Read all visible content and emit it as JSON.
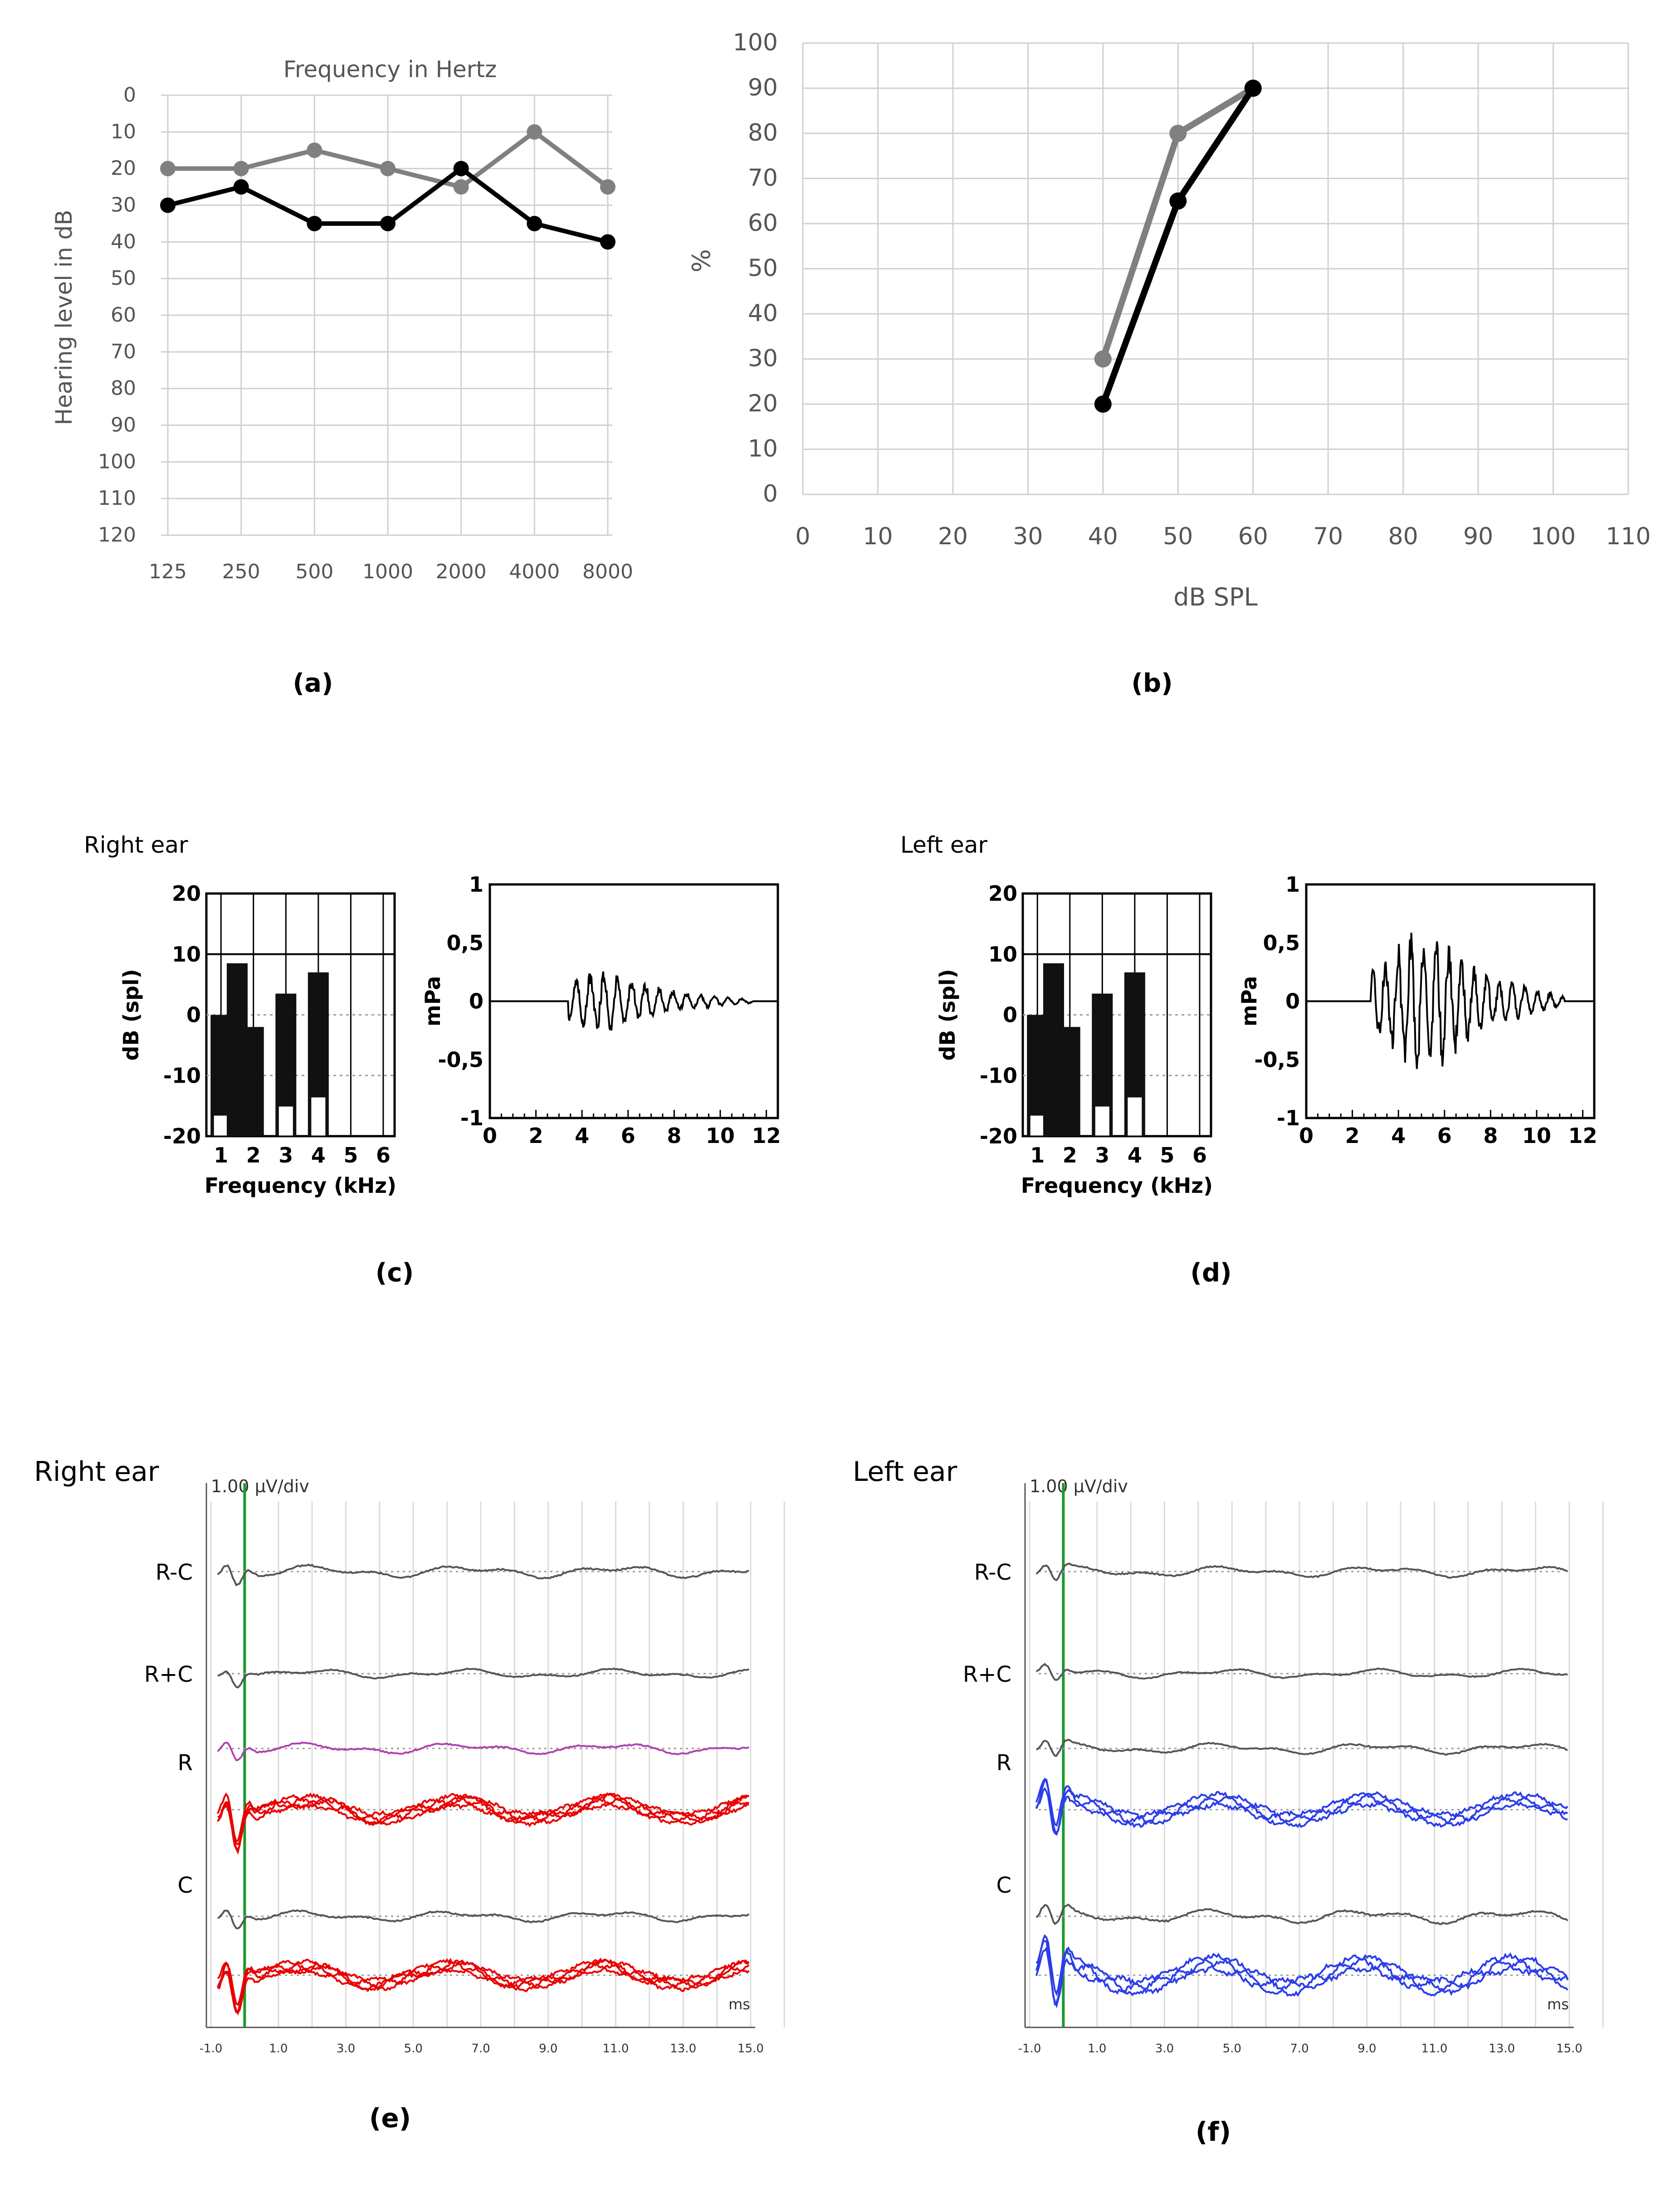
{
  "colors": {
    "gray_series": "#808080",
    "black_series": "#000000",
    "magenta_trace": "#b040b0",
    "red_traces": "#e80000",
    "blue_traces": "#2c3ee8",
    "marker_line": "#1a9a2a",
    "grid": "#d0d0d0"
  },
  "chart_data": [
    {
      "panel": "a",
      "type": "line",
      "caption": "(a)",
      "title": "Frequency in Hertz",
      "ylabel": "Hearing level in dB",
      "xlabel": "",
      "categories": [
        "125",
        "250",
        "500",
        "1000",
        "2000",
        "4000",
        "8000"
      ],
      "ylim": [
        0,
        120
      ],
      "y_inverted": true,
      "yticks": [
        "0",
        "10",
        "20",
        "30",
        "40",
        "50",
        "60",
        "70",
        "80",
        "90",
        "100",
        "110",
        "120"
      ],
      "grid": true,
      "series": [
        {
          "color": "#808080",
          "values": [
            20,
            20,
            15,
            20,
            25,
            10,
            25
          ]
        },
        {
          "color": "#000000",
          "values": [
            30,
            25,
            35,
            35,
            20,
            35,
            40
          ]
        }
      ]
    },
    {
      "panel": "b",
      "type": "line",
      "caption": "(b)",
      "xlabel": "dB SPL",
      "ylabel": "%",
      "xlim": [
        0,
        110
      ],
      "ylim": [
        0,
        100
      ],
      "xticks": [
        "0",
        "10",
        "20",
        "30",
        "40",
        "50",
        "60",
        "70",
        "80",
        "90",
        "100",
        "110"
      ],
      "yticks": [
        "0",
        "10",
        "20",
        "30",
        "40",
        "50",
        "60",
        "70",
        "80",
        "90",
        "100"
      ],
      "grid": true,
      "series": [
        {
          "color": "#808080",
          "x": [
            40,
            50,
            60
          ],
          "y": [
            30,
            80,
            90
          ]
        },
        {
          "color": "#000000",
          "x": [
            40,
            50,
            60
          ],
          "y": [
            20,
            65,
            90
          ]
        }
      ]
    },
    {
      "panel": "c",
      "ear": "Right ear",
      "caption": "(c)",
      "charts": [
        {
          "type": "bar",
          "ylabel": "dB (spl)",
          "xlabel": "Frequency (kHz)",
          "ylim": [
            -20,
            20
          ],
          "yticks": [
            "20",
            "10",
            "0",
            "-10",
            "-20"
          ],
          "xticks": [
            "1",
            "2",
            "3",
            "4",
            "5",
            "6"
          ],
          "xtick_values": [
            1,
            2,
            3,
            4,
            5,
            6
          ],
          "xlim": [
            0.55,
            6.35
          ],
          "bars": [
            {
              "x": 1.0,
              "response": 0,
              "noise": -16.5
            },
            {
              "x": 1.5,
              "response": 8.5,
              "noise": -20
            },
            {
              "x": 2.0,
              "response": -2,
              "noise": -20
            },
            {
              "x": 3.0,
              "response": 3.5,
              "noise": -15
            },
            {
              "x": 4.0,
              "response": 7,
              "noise": -13.5
            }
          ]
        },
        {
          "type": "line",
          "ylabel": "mPa",
          "xlabel": "",
          "xlim": [
            0,
            12.5
          ],
          "ylim": [
            -1,
            1
          ],
          "xticks": [
            "0",
            "2",
            "4",
            "6",
            "8",
            "10",
            "12"
          ],
          "yticks": [
            "1",
            "0,5",
            "0",
            "-0,5",
            "-1"
          ],
          "waveform": {
            "onset_ms": 3.4,
            "end_ms": 11.4,
            "peak_ms": 4.9,
            "peak_mPa": 0.25,
            "decay": 0.55,
            "osc_period_ms": 0.6
          }
        }
      ]
    },
    {
      "panel": "d",
      "ear": "Left ear",
      "caption": "(d)",
      "charts": [
        {
          "type": "bar",
          "ylabel": "dB (spl)",
          "xlabel": "Frequency (kHz)",
          "ylim": [
            -20,
            20
          ],
          "yticks": [
            "20",
            "10",
            "0",
            "-10",
            "-20"
          ],
          "xticks": [
            "1",
            "2",
            "3",
            "4",
            "5",
            "6"
          ],
          "xtick_values": [
            1,
            2,
            3,
            4,
            5,
            6
          ],
          "xlim": [
            0.55,
            6.35
          ],
          "bars": [
            {
              "x": 1.0,
              "response": 0,
              "noise": -16.5
            },
            {
              "x": 1.5,
              "response": 8.5,
              "noise": -20
            },
            {
              "x": 2.0,
              "response": -2,
              "noise": -20
            },
            {
              "x": 3.0,
              "response": 3.5,
              "noise": -15
            },
            {
              "x": 4.0,
              "response": 7,
              "noise": -13.5
            }
          ]
        },
        {
          "type": "line",
          "ylabel": "mPa",
          "xlabel": "",
          "xlim": [
            0,
            12.5
          ],
          "ylim": [
            -1,
            1
          ],
          "xticks": [
            "0",
            "2",
            "4",
            "6",
            "8",
            "10",
            "12"
          ],
          "yticks": [
            "1",
            "0,5",
            "0",
            "-0,5",
            "-1"
          ],
          "waveform": {
            "onset_ms": 2.8,
            "end_ms": 11.2,
            "peak_ms": 4.9,
            "peak_mPa": 0.6,
            "decay": 0.75,
            "osc_period_ms": 0.55
          }
        }
      ]
    },
    {
      "panel": "e",
      "ear": "Right ear",
      "caption": "(e)",
      "type": "line",
      "scale": "1.00 µV/div",
      "unit": "ms",
      "xlim": [
        -1,
        15
      ],
      "xticks": [
        "-1.0",
        "1.0",
        "3.0",
        "5.0",
        "7.0",
        "9.0",
        "11.0",
        "13.0",
        "15.0"
      ],
      "marker_ms": 0,
      "rows": [
        {
          "label": "R-C",
          "traces": 1,
          "color": "#555555",
          "amplitude": 0.4
        },
        {
          "label": "R+C",
          "traces": 1,
          "color": "#555555",
          "amplitude": 0.3
        },
        {
          "label": "R",
          "traces": 1,
          "color": "#b040b0",
          "amplitude": 0.35
        },
        {
          "label": "",
          "traces": 4,
          "color": "#e80000",
          "amplitude": 0.9
        },
        {
          "label": "C",
          "traces": 1,
          "color": "#555555",
          "amplitude": 0.35
        },
        {
          "label": "",
          "traces": 4,
          "color": "#e80000",
          "amplitude": 0.9
        }
      ]
    },
    {
      "panel": "f",
      "ear": "Left ear",
      "caption": "(f)",
      "type": "line",
      "scale": "1.00 µV/div",
      "unit": "ms",
      "xlim": [
        -1,
        15
      ],
      "xticks": [
        "-1.0",
        "1.0",
        "3.0",
        "5.0",
        "7.0",
        "9.0",
        "11.0",
        "13.0",
        "15.0"
      ],
      "marker_ms": 0,
      "rows": [
        {
          "label": "R-C",
          "traces": 1,
          "color": "#555555",
          "amplitude": 0.35
        },
        {
          "label": "R+C",
          "traces": 1,
          "color": "#555555",
          "amplitude": 0.3
        },
        {
          "label": "R",
          "traces": 1,
          "color": "#555555",
          "amplitude": 0.35
        },
        {
          "label": "",
          "traces": 3,
          "color": "#2c3ee8",
          "amplitude": 1.0
        },
        {
          "label": "C",
          "traces": 1,
          "color": "#555555",
          "amplitude": 0.45
        },
        {
          "label": "",
          "traces": 3,
          "color": "#2c3ee8",
          "amplitude": 1.2
        }
      ]
    }
  ]
}
